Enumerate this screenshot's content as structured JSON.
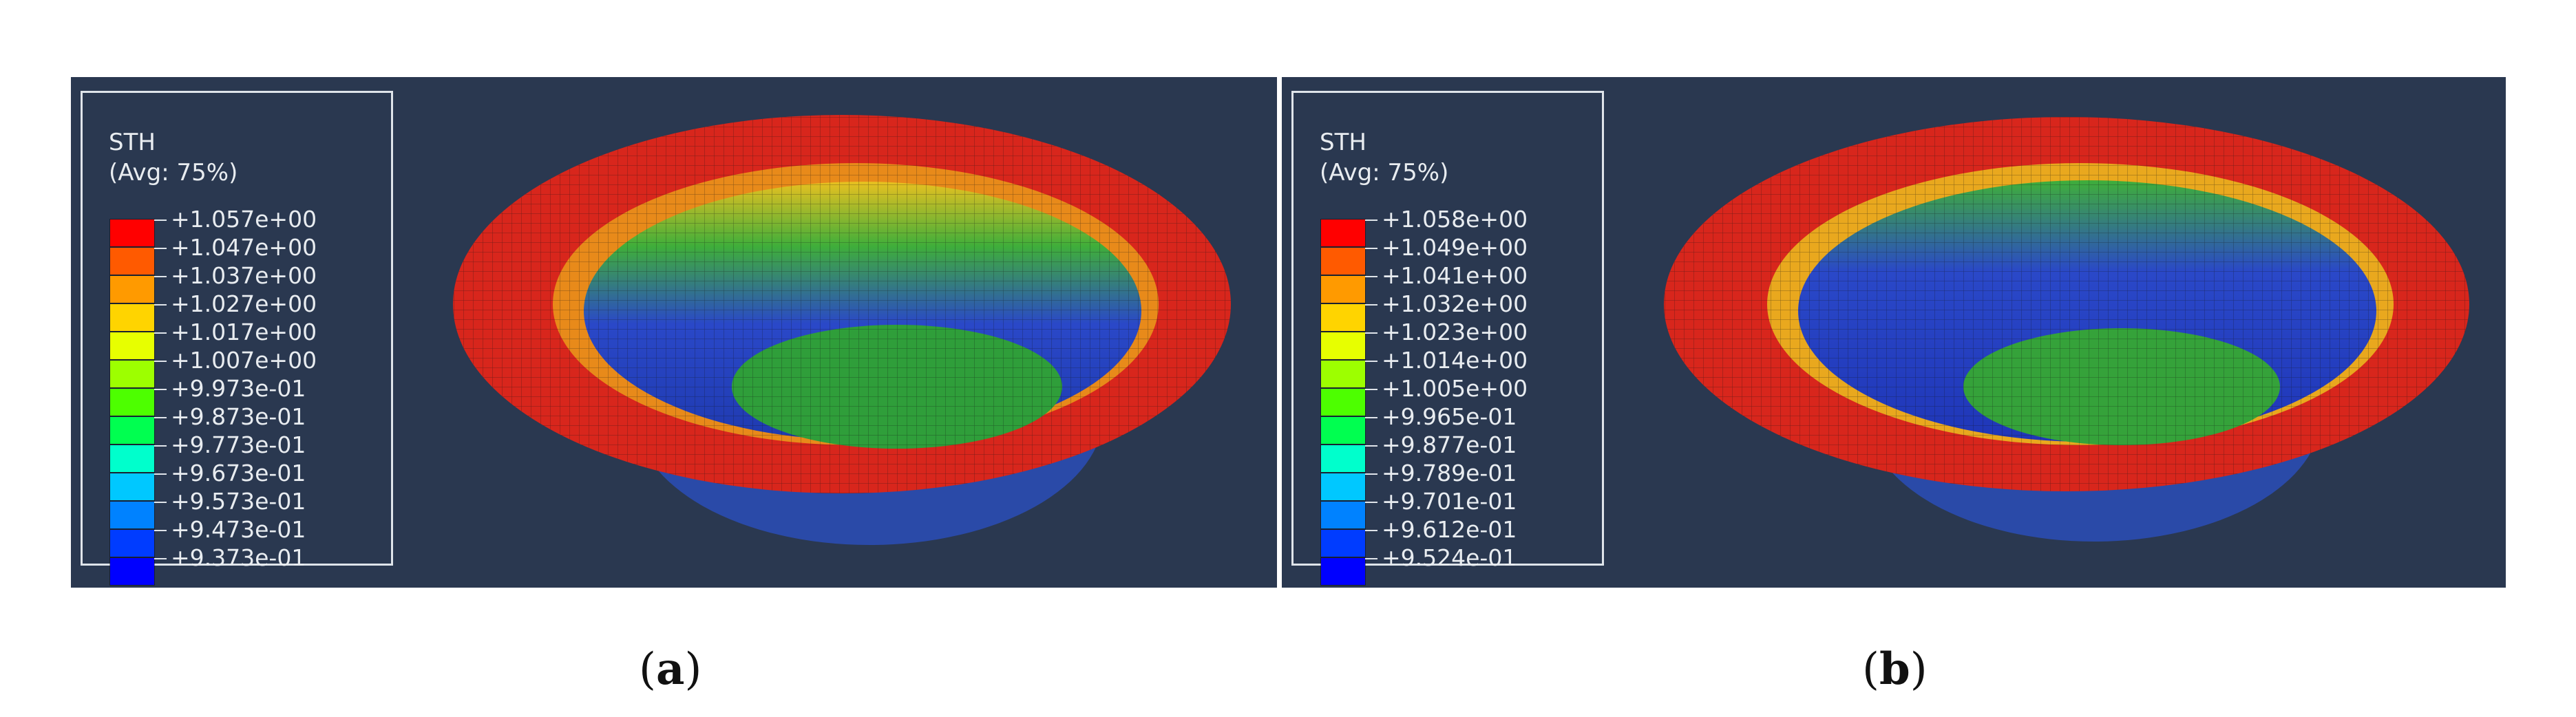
{
  "panels": [
    {
      "id": "a",
      "legend": {
        "title": "STH",
        "subtitle": "(Avg: 75%)",
        "values": [
          "+1.057e+00",
          "+1.047e+00",
          "+1.037e+00",
          "+1.027e+00",
          "+1.017e+00",
          "+1.007e+00",
          "+9.973e-01",
          "+9.873e-01",
          "+9.773e-01",
          "+9.673e-01",
          "+9.573e-01",
          "+9.473e-01",
          "+9.373e-01"
        ],
        "colors": [
          "#ff0000",
          "#ff5a00",
          "#ff9a00",
          "#ffd400",
          "#e7ff00",
          "#9dff00",
          "#4dff00",
          "#00ff50",
          "#00ffcc",
          "#00c8ff",
          "#0082ff",
          "#003cff",
          "#0000ff"
        ]
      },
      "caption": {
        "open": "(",
        "letter": "a",
        "close": ")"
      }
    },
    {
      "id": "b",
      "legend": {
        "title": "STH",
        "subtitle": "(Avg: 75%)",
        "values": [
          "+1.058e+00",
          "+1.049e+00",
          "+1.041e+00",
          "+1.032e+00",
          "+1.023e+00",
          "+1.014e+00",
          "+1.005e+00",
          "+9.965e-01",
          "+9.877e-01",
          "+9.789e-01",
          "+9.701e-01",
          "+9.612e-01",
          "+9.524e-01"
        ],
        "colors": [
          "#ff0000",
          "#ff5a00",
          "#ff9a00",
          "#ffd400",
          "#e7ff00",
          "#9dff00",
          "#4dff00",
          "#00ff50",
          "#00ffcc",
          "#00c8ff",
          "#0082ff",
          "#003cff",
          "#0000ff"
        ]
      },
      "caption": {
        "open": "(",
        "letter": "b",
        "close": ")"
      }
    }
  ],
  "colors": {
    "panel_background": "#2a3850",
    "rim": "#d8261c",
    "wall_green": "#3fae3a",
    "wall_blue": "#2a48c8"
  }
}
